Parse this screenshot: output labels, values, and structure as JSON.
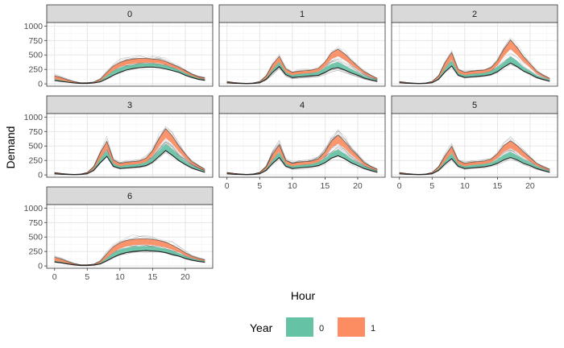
{
  "chart_data": {
    "type": "line",
    "facet_var": "day",
    "facets": [
      "0",
      "1",
      "2",
      "3",
      "4",
      "5",
      "6"
    ],
    "xlabel": "Hour",
    "ylabel": "Demand",
    "x_ticks": [
      0,
      5,
      10,
      15,
      20
    ],
    "y_ticks": [
      0,
      250,
      500,
      750,
      1000
    ],
    "xlim": [
      -1.2,
      24.2
    ],
    "ylim": [
      -40,
      1060
    ],
    "grid": true,
    "legend": {
      "title": "Year",
      "position": "bottom",
      "entries": [
        {
          "label": "0",
          "color": "#66c2a5"
        },
        {
          "label": "1",
          "color": "#fc8d62"
        }
      ]
    },
    "x": [
      0,
      1,
      2,
      3,
      4,
      5,
      6,
      7,
      8,
      9,
      10,
      11,
      12,
      13,
      14,
      15,
      16,
      17,
      18,
      19,
      20,
      21,
      22,
      23
    ],
    "series": [
      {
        "facet": "0",
        "year0_low": [
          60,
          45,
          30,
          15,
          8,
          8,
          15,
          35,
          90,
          150,
          200,
          240,
          265,
          280,
          290,
          290,
          280,
          260,
          230,
          200,
          150,
          110,
          80,
          60
        ],
        "year0_high": [
          110,
          90,
          55,
          30,
          15,
          15,
          25,
          60,
          150,
          230,
          280,
          310,
          330,
          345,
          350,
          350,
          340,
          320,
          280,
          240,
          190,
          140,
          100,
          75
        ],
        "year1_low": [
          80,
          60,
          40,
          20,
          10,
          10,
          20,
          50,
          140,
          230,
          290,
          330,
          350,
          360,
          370,
          365,
          355,
          330,
          290,
          250,
          190,
          140,
          100,
          80
        ],
        "year1_high": [
          140,
          110,
          70,
          35,
          18,
          18,
          30,
          80,
          200,
          310,
          370,
          410,
          430,
          440,
          440,
          430,
          420,
          390,
          340,
          290,
          230,
          170,
          125,
          100
        ]
      },
      {
        "facet": "1",
        "year0_low": [
          20,
          12,
          8,
          5,
          8,
          20,
          80,
          200,
          300,
          160,
          110,
          120,
          130,
          140,
          150,
          200,
          260,
          280,
          240,
          190,
          150,
          100,
          70,
          45
        ],
        "year0_high": [
          35,
          20,
          12,
          8,
          12,
          35,
          120,
          290,
          380,
          220,
          150,
          170,
          180,
          190,
          210,
          280,
          350,
          380,
          320,
          260,
          200,
          140,
          100,
          65
        ],
        "year1_low": [
          25,
          15,
          10,
          6,
          10,
          25,
          100,
          250,
          380,
          200,
          150,
          170,
          180,
          190,
          210,
          300,
          430,
          480,
          420,
          330,
          250,
          170,
          120,
          75
        ],
        "year1_high": [
          40,
          25,
          15,
          10,
          15,
          40,
          140,
          340,
          480,
          260,
          200,
          220,
          230,
          240,
          270,
          380,
          540,
          600,
          520,
          410,
          310,
          210,
          150,
          95
        ]
      },
      {
        "facet": "2",
        "year0_low": [
          20,
          12,
          8,
          5,
          8,
          20,
          80,
          210,
          310,
          150,
          110,
          120,
          130,
          140,
          160,
          210,
          290,
          360,
          300,
          220,
          170,
          110,
          75,
          45
        ],
        "year0_high": [
          35,
          20,
          12,
          8,
          12,
          35,
          120,
          300,
          400,
          210,
          150,
          170,
          180,
          190,
          220,
          290,
          380,
          480,
          400,
          290,
          220,
          150,
          105,
          65
        ],
        "year1_low": [
          25,
          15,
          10,
          6,
          10,
          25,
          100,
          270,
          420,
          190,
          150,
          170,
          180,
          190,
          220,
          320,
          480,
          600,
          500,
          380,
          280,
          180,
          120,
          75
        ],
        "year1_high": [
          40,
          25,
          15,
          10,
          15,
          40,
          140,
          370,
          540,
          250,
          200,
          220,
          230,
          240,
          280,
          400,
          600,
          760,
          630,
          470,
          350,
          220,
          150,
          95
        ]
      },
      {
        "facet": "3",
        "year0_low": [
          20,
          12,
          8,
          5,
          8,
          20,
          80,
          210,
          320,
          150,
          110,
          120,
          130,
          140,
          160,
          220,
          320,
          420,
          340,
          250,
          180,
          120,
          80,
          45
        ],
        "year0_high": [
          35,
          20,
          12,
          8,
          12,
          35,
          120,
          300,
          410,
          210,
          150,
          170,
          180,
          190,
          220,
          300,
          420,
          540,
          450,
          330,
          240,
          160,
          110,
          65
        ],
        "year1_low": [
          25,
          15,
          10,
          6,
          10,
          25,
          100,
          280,
          450,
          200,
          150,
          170,
          180,
          190,
          220,
          330,
          500,
          640,
          540,
          400,
          290,
          190,
          130,
          75
        ],
        "year1_high": [
          40,
          25,
          15,
          10,
          15,
          40,
          140,
          380,
          580,
          260,
          200,
          220,
          230,
          240,
          290,
          420,
          630,
          800,
          680,
          500,
          360,
          230,
          160,
          95
        ]
      },
      {
        "facet": "4",
        "year0_low": [
          20,
          12,
          8,
          5,
          8,
          20,
          80,
          200,
          300,
          150,
          110,
          120,
          130,
          140,
          160,
          210,
          290,
          330,
          280,
          210,
          160,
          110,
          75,
          45
        ],
        "year0_high": [
          35,
          20,
          12,
          8,
          12,
          35,
          120,
          290,
          390,
          210,
          150,
          170,
          180,
          190,
          220,
          290,
          380,
          440,
          370,
          280,
          210,
          150,
          105,
          65
        ],
        "year1_low": [
          25,
          15,
          10,
          6,
          10,
          25,
          100,
          260,
          400,
          190,
          150,
          170,
          180,
          190,
          220,
          320,
          470,
          540,
          460,
          350,
          260,
          170,
          115,
          75
        ],
        "year1_high": [
          40,
          25,
          15,
          10,
          15,
          40,
          140,
          360,
          520,
          250,
          200,
          220,
          230,
          240,
          280,
          400,
          590,
          690,
          580,
          440,
          330,
          210,
          145,
          95
        ]
      },
      {
        "facet": "5",
        "year0_low": [
          20,
          12,
          8,
          5,
          8,
          20,
          80,
          190,
          280,
          150,
          110,
          120,
          130,
          140,
          160,
          200,
          260,
          300,
          260,
          200,
          160,
          110,
          75,
          45
        ],
        "year0_high": [
          35,
          20,
          12,
          8,
          12,
          35,
          120,
          270,
          370,
          210,
          150,
          170,
          180,
          190,
          210,
          270,
          350,
          400,
          340,
          270,
          210,
          150,
          105,
          65
        ],
        "year1_low": [
          25,
          15,
          10,
          6,
          10,
          25,
          100,
          240,
          380,
          190,
          150,
          170,
          180,
          190,
          210,
          290,
          400,
          460,
          400,
          310,
          240,
          160,
          110,
          75
        ],
        "year1_high": [
          40,
          25,
          15,
          10,
          15,
          40,
          140,
          330,
          490,
          250,
          200,
          220,
          230,
          240,
          270,
          370,
          510,
          590,
          510,
          400,
          300,
          200,
          140,
          95
        ]
      },
      {
        "facet": "6",
        "year0_low": [
          70,
          55,
          35,
          18,
          8,
          8,
          15,
          35,
          90,
          150,
          200,
          230,
          250,
          260,
          265,
          260,
          250,
          230,
          200,
          170,
          130,
          100,
          80,
          65
        ],
        "year0_high": [
          120,
          100,
          60,
          32,
          15,
          15,
          25,
          60,
          150,
          230,
          280,
          310,
          330,
          340,
          340,
          335,
          320,
          300,
          260,
          220,
          170,
          130,
          105,
          85
        ],
        "year1_low": [
          90,
          70,
          45,
          22,
          10,
          10,
          20,
          50,
          140,
          230,
          300,
          340,
          360,
          370,
          370,
          360,
          345,
          320,
          280,
          240,
          180,
          135,
          105,
          85
        ],
        "year1_high": [
          150,
          120,
          75,
          38,
          18,
          18,
          30,
          80,
          210,
          330,
          400,
          440,
          460,
          470,
          470,
          460,
          440,
          410,
          360,
          300,
          230,
          170,
          130,
          105
        ]
      }
    ]
  }
}
